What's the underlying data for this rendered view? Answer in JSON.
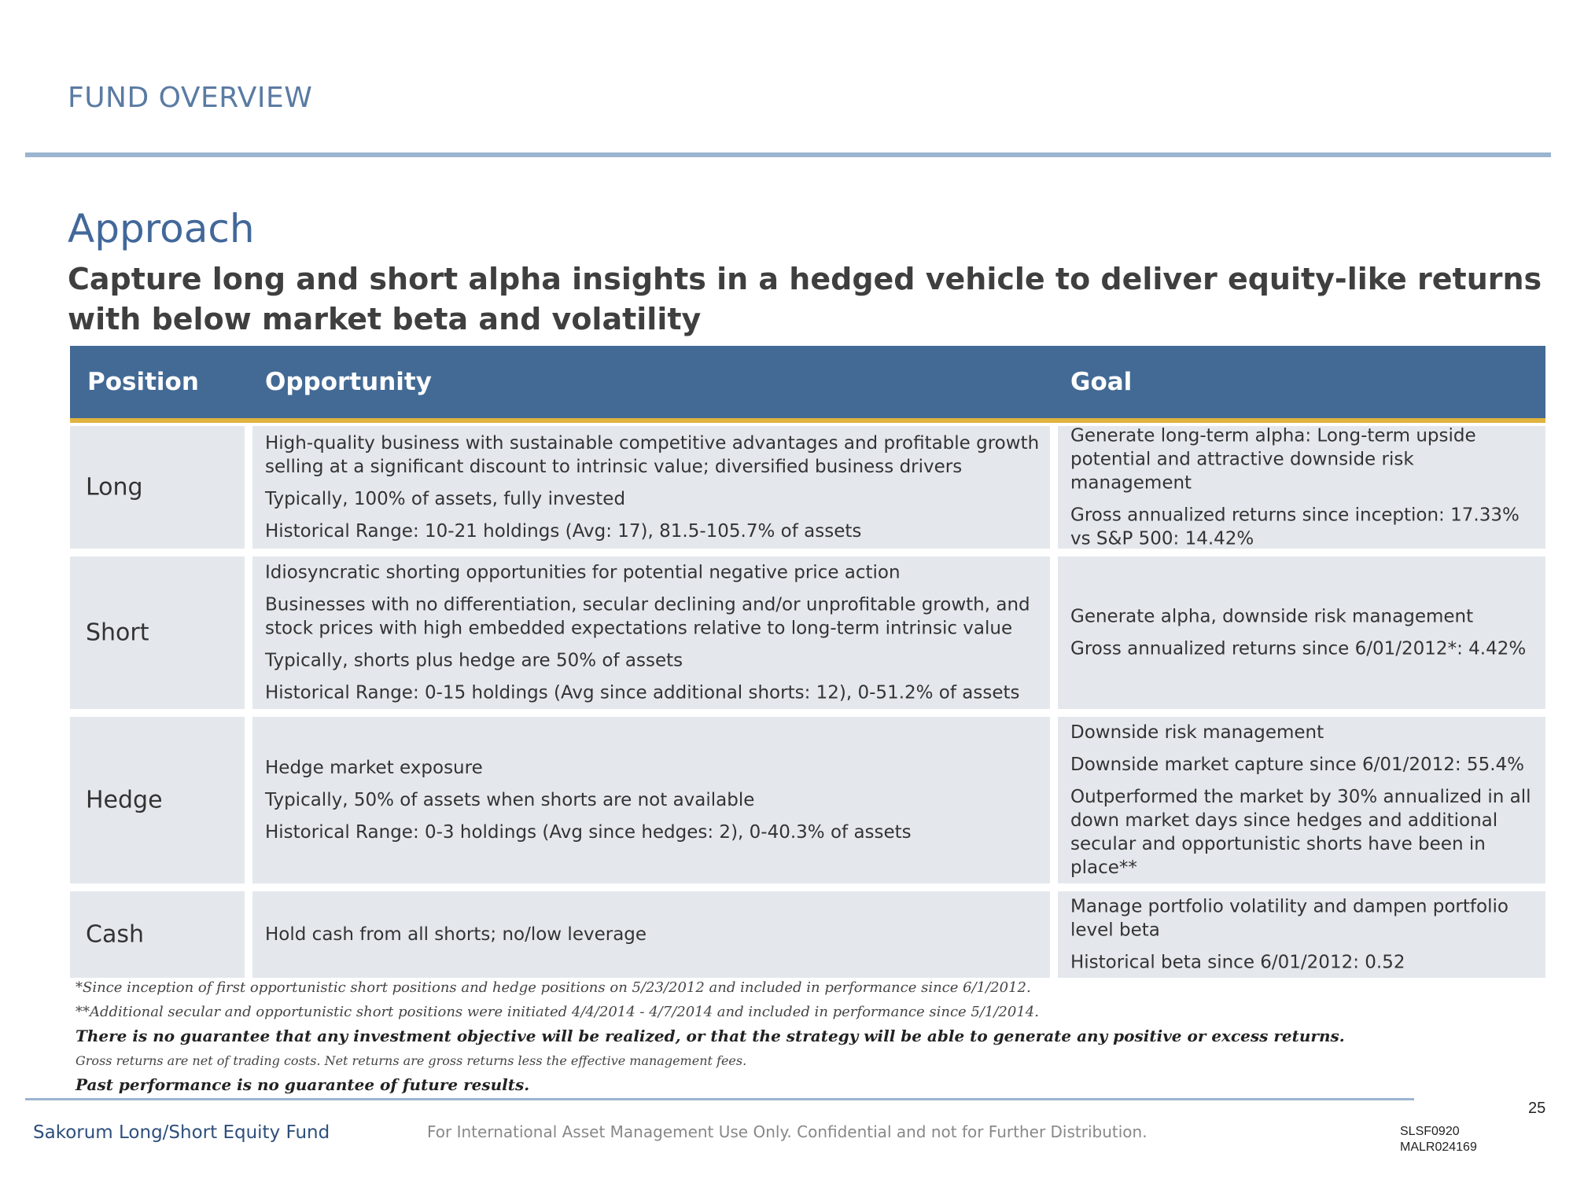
{
  "header": {
    "section_title": "FUND OVERVIEW",
    "heading": "Approach",
    "subheading": "Capture long and short alpha insights in a hedged vehicle to deliver equity-like returns with below market beta and volatility"
  },
  "table": {
    "columns": [
      "Position",
      "Opportunity",
      "Goal"
    ],
    "rows": [
      {
        "position": "Long",
        "opportunity": [
          "High-quality business with sustainable competitive advantages and profitable growth selling at a significant discount to intrinsic value; diversified business drivers",
          "Typically, 100% of assets, fully invested",
          "Historical Range: 10-21 holdings (Avg: 17), 81.5-105.7% of assets"
        ],
        "goal": [
          "Generate long-term alpha:  Long-term upside potential and attractive downside risk management",
          "Gross annualized returns since inception: 17.33% vs S&P 500: 14.42%"
        ]
      },
      {
        "position": "Short",
        "opportunity": [
          "Idiosyncratic shorting opportunities for potential negative price action",
          "Businesses with no differentiation, secular declining and/or unprofitable growth, and stock prices with high embedded expectations relative to long-term intrinsic value",
          "Typically, shorts plus hedge are 50% of assets",
          "Historical Range: 0-15 holdings (Avg since additional shorts: 12), 0-51.2% of assets"
        ],
        "goal": [
          "Generate  alpha, downside risk management",
          "Gross annualized returns since 6/01/2012*: 4.42%"
        ]
      },
      {
        "position": "Hedge",
        "opportunity": [
          "Hedge market exposure",
          "Typically, 50% of assets when shorts are not available",
          "Historical Range: 0-3 holdings (Avg since hedges: 2), 0-40.3% of assets"
        ],
        "goal": [
          "Downside risk management",
          "Downside market capture since 6/01/2012: 55.4%",
          "Outperformed the market by 30% annualized in all down market days since hedges and additional secular and opportunistic shorts have been in place**"
        ]
      },
      {
        "position": "Cash",
        "opportunity": [
          "Hold cash from all shorts; no/low leverage"
        ],
        "goal": [
          "Manage portfolio volatility and dampen portfolio level beta",
          "Historical beta since 6/01/2012: 0.52"
        ]
      }
    ]
  },
  "notes": {
    "note1": "*Since inception of first opportunistic short positions and hedge positions on 5/23/2012 and included in performance since 6/1/2012.",
    "note2": "**Additional secular and opportunistic short positions were initiated 4/4/2014 - 4/7/2014 and included in performance since 5/1/2014.",
    "note3": "There is no guarantee that any investment objective will be realized, or that the strategy will be able to generate any positive or excess returns.",
    "note4": "Gross returns are net of trading costs. Net returns are gross returns less the effective management fees.",
    "note5": "Past performance is no guarantee of future results."
  },
  "footer": {
    "page_number": "25",
    "fund_name": "Sakorum Long/Short Equity Fund",
    "confidential": "For International Asset Management Use Only. Confidential and not for Further Distribution.",
    "code1": "SLSF0920",
    "code2": "MALR024169"
  }
}
